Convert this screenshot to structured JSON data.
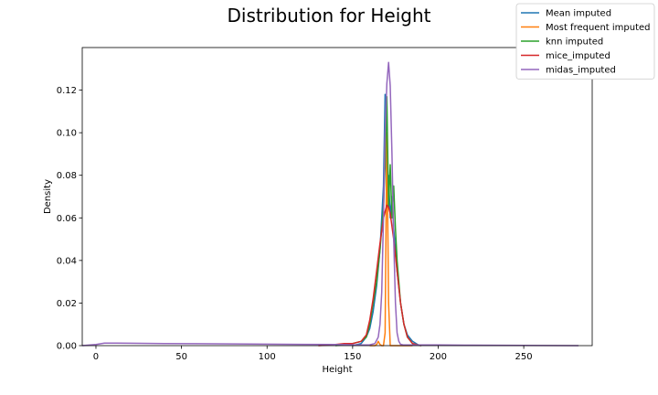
{
  "chart_data": {
    "type": "line",
    "title": "Distribution for Height",
    "xlabel": "Height",
    "ylabel": "Density",
    "xlim": [
      -8,
      290
    ],
    "ylim": [
      0,
      0.14
    ],
    "xticks": [
      "0",
      "50",
      "100",
      "150",
      "200",
      "250"
    ],
    "yticks": [
      "0.00",
      "0.02",
      "0.04",
      "0.06",
      "0.08",
      "0.10",
      "0.12"
    ],
    "legend_position": "top-right",
    "grid": false,
    "series": [
      {
        "name": "Mean imputed",
        "color": "#1f77b4",
        "x": [
          150,
          155,
          158,
          160,
          162,
          164,
          166,
          168,
          169,
          170,
          171,
          172,
          173,
          174,
          175,
          176,
          178,
          180,
          182,
          185,
          188,
          190
        ],
        "y": [
          0.0,
          0.001,
          0.004,
          0.008,
          0.016,
          0.028,
          0.045,
          0.075,
          0.118,
          0.07,
          0.08,
          0.06,
          0.07,
          0.055,
          0.045,
          0.035,
          0.02,
          0.01,
          0.005,
          0.002,
          0.0005,
          0.0
        ]
      },
      {
        "name": "Most frequent imputed",
        "color": "#ff7f0e",
        "x": [
          160,
          163,
          164,
          165,
          166,
          167,
          168,
          169,
          170,
          171,
          172,
          174,
          176,
          178,
          180,
          185
        ],
        "y": [
          0.0,
          0.0,
          0.0005,
          0.002,
          0.0005,
          0.0,
          0.0,
          0.006,
          0.1,
          0.02,
          0.0,
          0.0,
          0.0,
          0.0,
          0.0,
          0.0
        ]
      },
      {
        "name": "knn imputed",
        "color": "#2ca02c",
        "x": [
          140,
          145,
          150,
          155,
          158,
          160,
          162,
          164,
          166,
          168,
          169,
          170,
          171,
          172,
          173,
          174,
          175,
          176,
          177,
          178,
          180,
          182,
          185,
          190
        ],
        "y": [
          0.0,
          0.0005,
          0.001,
          0.002,
          0.004,
          0.01,
          0.02,
          0.03,
          0.045,
          0.065,
          0.085,
          0.117,
          0.065,
          0.085,
          0.06,
          0.075,
          0.055,
          0.04,
          0.03,
          0.02,
          0.01,
          0.004,
          0.001,
          0.0
        ]
      },
      {
        "name": "mice_imputed",
        "color": "#d62728",
        "x": [
          130,
          140,
          145,
          150,
          155,
          158,
          160,
          162,
          164,
          166,
          168,
          170,
          171,
          172,
          174,
          176,
          178,
          180,
          182,
          185,
          190
        ],
        "y": [
          0.0,
          0.0005,
          0.001,
          0.001,
          0.002,
          0.005,
          0.012,
          0.022,
          0.035,
          0.048,
          0.06,
          0.066,
          0.065,
          0.062,
          0.05,
          0.035,
          0.02,
          0.01,
          0.004,
          0.001,
          0.0
        ]
      },
      {
        "name": "midas_imputed",
        "color": "#9467bd",
        "x": [
          -8,
          0,
          5,
          10,
          20,
          40,
          60,
          80,
          100,
          120,
          140,
          150,
          155,
          160,
          163,
          165,
          166,
          167,
          168,
          169,
          170,
          171,
          172,
          173,
          174,
          175,
          176,
          177,
          178,
          180,
          185,
          200,
          220,
          250,
          282
        ],
        "y": [
          0.0,
          0.0005,
          0.0012,
          0.0012,
          0.0011,
          0.001,
          0.0009,
          0.0008,
          0.0007,
          0.0006,
          0.0005,
          0.0004,
          0.0003,
          0.0004,
          0.001,
          0.004,
          0.01,
          0.025,
          0.06,
          0.1,
          0.123,
          0.133,
          0.122,
          0.09,
          0.05,
          0.02,
          0.006,
          0.002,
          0.0006,
          0.0003,
          0.0003,
          0.0003,
          0.0002,
          0.0001,
          0.0
        ]
      }
    ]
  }
}
